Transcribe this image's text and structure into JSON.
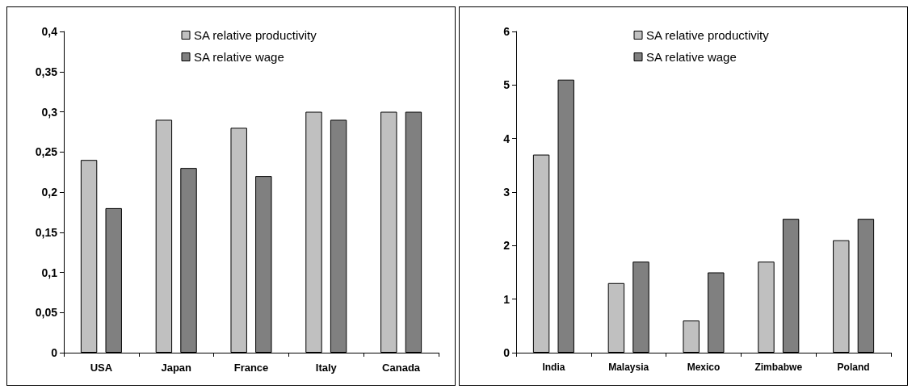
{
  "chart_data": [
    {
      "type": "bar",
      "categories": [
        "USA",
        "Japan",
        "France",
        "Italy",
        "Canada"
      ],
      "series": [
        {
          "name": "SA relative productivity",
          "color": "#c0c0c0",
          "values": [
            0.24,
            0.29,
            0.28,
            0.3,
            0.3
          ]
        },
        {
          "name": "SA relative wage",
          "color": "#808080",
          "values": [
            0.18,
            0.23,
            0.22,
            0.29,
            0.3
          ]
        }
      ],
      "ylim": [
        0,
        0.4
      ],
      "yticks": [
        0,
        {
          "value": 0.05,
          "label": "0,05"
        },
        {
          "value": 0.1,
          "label": "0,1"
        },
        {
          "value": 0.15,
          "label": "0,15"
        },
        {
          "value": 0.2,
          "label": "0,2"
        },
        {
          "value": 0.25,
          "label": "0,25"
        },
        {
          "value": 0.3,
          "label": "0,3"
        },
        {
          "value": 0.35,
          "label": "0,35"
        },
        {
          "value": 0.4,
          "label": "0,4"
        }
      ],
      "grid": false,
      "legend": "top"
    },
    {
      "type": "bar",
      "categories": [
        "India",
        "Malaysia",
        "Mexico",
        "Zimbabwe",
        "Poland"
      ],
      "series": [
        {
          "name": "SA relative productivity",
          "color": "#c0c0c0",
          "values": [
            3.7,
            1.3,
            0.6,
            1.7,
            2.1
          ]
        },
        {
          "name": "SA relative wage",
          "color": "#808080",
          "values": [
            5.1,
            1.7,
            1.5,
            2.5,
            2.5
          ]
        }
      ],
      "ylim": [
        0,
        6
      ],
      "yticks": [
        0,
        1,
        2,
        3,
        4,
        5,
        6
      ],
      "grid": false,
      "legend": "top"
    }
  ]
}
